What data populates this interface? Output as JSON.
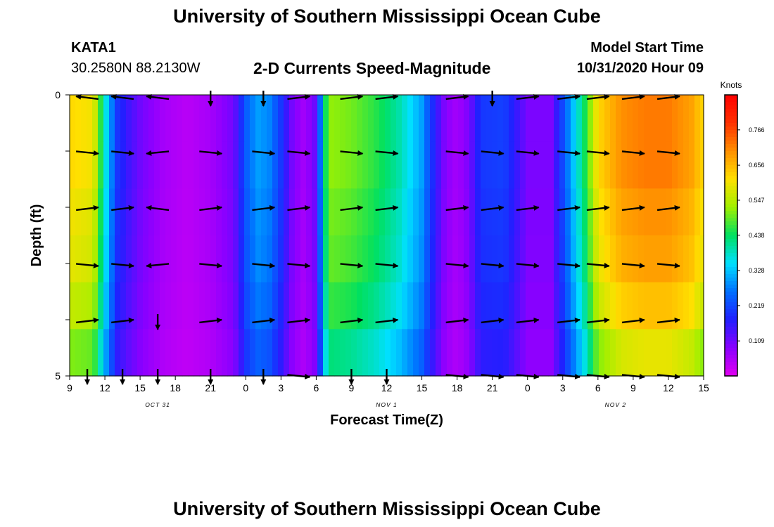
{
  "header": {
    "title": "University of Southern Mississippi Ocean Cube",
    "station_id": "KATA1",
    "station_coords": "30.2580N 88.2130W",
    "chart_title": "2-D Currents Speed-Magnitude",
    "model_start_label": "Model Start Time",
    "model_start_time": "10/31/2020 Hour 09"
  },
  "footer": {
    "title": "University of Southern Mississippi Ocean Cube"
  },
  "colors": {
    "arrow": "#000000",
    "palette": [
      "#e000f0",
      "#8a00ff",
      "#2020ff",
      "#0070ff",
      "#00e0ff",
      "#00e060",
      "#a0f000",
      "#ffe000",
      "#ff9000",
      "#ff3000",
      "#ff0000"
    ]
  },
  "chart_data": {
    "type": "heatmap",
    "title": "2-D Currents Speed-Magnitude",
    "xlabel": "Forecast Time(Z)",
    "ylabel": "Depth (ft)",
    "x_tick_labels": [
      "9",
      "12",
      "15",
      "18",
      "21",
      "0",
      "3",
      "6",
      "9",
      "12",
      "15",
      "18",
      "21",
      "0",
      "3",
      "6",
      "9",
      "12",
      "15"
    ],
    "x_date_labels": [
      {
        "label": "OCT 31",
        "hour_offset": 7.5
      },
      {
        "label": "NOV 1",
        "hour_offset": 27
      },
      {
        "label": "NOV 2",
        "hour_offset": 46.5
      }
    ],
    "y_tick_labels": [
      "0",
      "5"
    ],
    "ylim": [
      0,
      5
    ],
    "xlim_hours": [
      0,
      54
    ],
    "colorbar": {
      "unit": "Knots",
      "ticks": [
        "0.766",
        "0.656",
        "0.547",
        "0.438",
        "0.328",
        "0.219",
        "0.109"
      ],
      "range": [
        0.0,
        0.875
      ]
    },
    "speed_profile": [
      {
        "hour": 0,
        "speed": 0.62
      },
      {
        "hour": 2,
        "speed": 0.6
      },
      {
        "hour": 3,
        "speed": 0.38
      },
      {
        "hour": 4,
        "speed": 0.2
      },
      {
        "hour": 5,
        "speed": 0.15
      },
      {
        "hour": 6,
        "speed": 0.11
      },
      {
        "hour": 8,
        "speed": 0.06
      },
      {
        "hour": 10,
        "speed": 0.04
      },
      {
        "hour": 12,
        "speed": 0.06
      },
      {
        "hour": 14,
        "speed": 0.11
      },
      {
        "hour": 15,
        "speed": 0.24
      },
      {
        "hour": 16,
        "speed": 0.3
      },
      {
        "hour": 17,
        "speed": 0.28
      },
      {
        "hour": 18,
        "speed": 0.2
      },
      {
        "hour": 19,
        "speed": 0.1
      },
      {
        "hour": 20,
        "speed": 0.06
      },
      {
        "hour": 21,
        "speed": 0.12
      },
      {
        "hour": 22,
        "speed": 0.52
      },
      {
        "hour": 24,
        "speed": 0.5
      },
      {
        "hour": 26,
        "speed": 0.46
      },
      {
        "hour": 28,
        "speed": 0.4
      },
      {
        "hour": 30,
        "speed": 0.3
      },
      {
        "hour": 31,
        "speed": 0.18
      },
      {
        "hour": 32,
        "speed": 0.09
      },
      {
        "hour": 33,
        "speed": 0.06
      },
      {
        "hour": 34,
        "speed": 0.1
      },
      {
        "hour": 35,
        "speed": 0.2
      },
      {
        "hour": 37,
        "speed": 0.21
      },
      {
        "hour": 38,
        "speed": 0.16
      },
      {
        "hour": 39,
        "speed": 0.1
      },
      {
        "hour": 41,
        "speed": 0.1
      },
      {
        "hour": 42,
        "speed": 0.22
      },
      {
        "hour": 43,
        "speed": 0.34
      },
      {
        "hour": 44,
        "speed": 0.46
      },
      {
        "hour": 45,
        "speed": 0.62
      },
      {
        "hour": 47,
        "speed": 0.7
      },
      {
        "hour": 49,
        "speed": 0.72
      },
      {
        "hour": 51,
        "speed": 0.72
      },
      {
        "hour": 53,
        "speed": 0.68
      },
      {
        "hour": 54,
        "speed": 0.62
      }
    ],
    "depth_factor": [
      1.0,
      1.0,
      0.97,
      0.95,
      0.9,
      0.82
    ],
    "arrow_columns": [
      {
        "hour": 1.5,
        "dirs": [
          -1,
          1,
          1,
          1,
          1,
          0
        ]
      },
      {
        "hour": 4.5,
        "dirs": [
          -1,
          1,
          1,
          1,
          1,
          0
        ]
      },
      {
        "hour": 7.5,
        "dirs": [
          -1,
          -1,
          -1,
          -1,
          0,
          0
        ]
      },
      {
        "hour": 12,
        "dirs": [
          0,
          1,
          1,
          1,
          1,
          0
        ]
      },
      {
        "hour": 16.5,
        "dirs": [
          0,
          1,
          1,
          1,
          1,
          0
        ]
      },
      {
        "hour": 19.5,
        "dirs": [
          1,
          1,
          1,
          1,
          1,
          1
        ]
      },
      {
        "hour": 24,
        "dirs": [
          1,
          1,
          1,
          1,
          1,
          0
        ]
      },
      {
        "hour": 27,
        "dirs": [
          1,
          1,
          1,
          1,
          1,
          0
        ]
      },
      {
        "hour": 33,
        "dirs": [
          1,
          1,
          1,
          1,
          1,
          1
        ]
      },
      {
        "hour": 36,
        "dirs": [
          0,
          1,
          1,
          1,
          1,
          1
        ]
      },
      {
        "hour": 39,
        "dirs": [
          1,
          1,
          1,
          1,
          1,
          1
        ]
      },
      {
        "hour": 42.5,
        "dirs": [
          1,
          1,
          1,
          1,
          1,
          1
        ]
      },
      {
        "hour": 45,
        "dirs": [
          1,
          1,
          1,
          1,
          1,
          1
        ]
      },
      {
        "hour": 48,
        "dirs": [
          1,
          1,
          1,
          1,
          1,
          1
        ]
      },
      {
        "hour": 51,
        "dirs": [
          1,
          1,
          1,
          1,
          1,
          1
        ]
      }
    ]
  }
}
